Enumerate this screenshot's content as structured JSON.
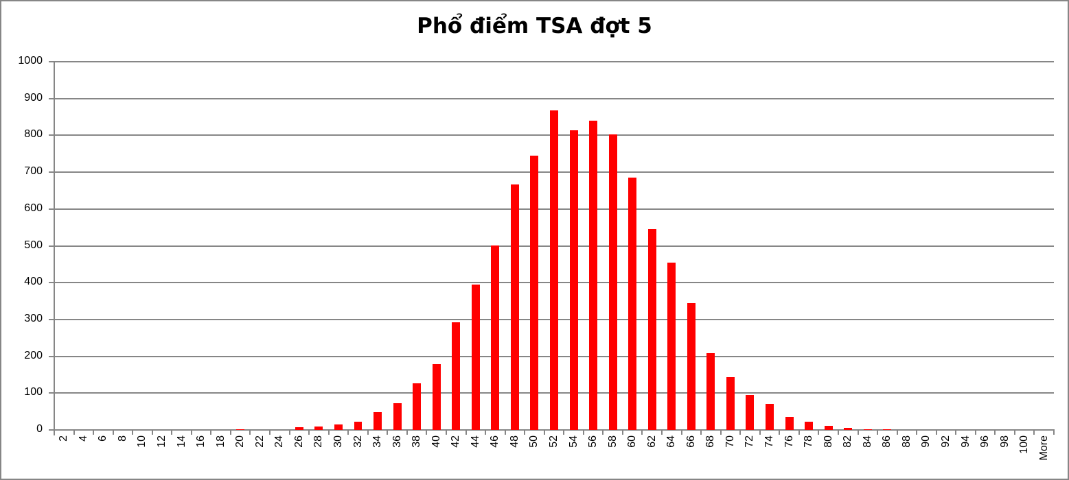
{
  "chart_data": {
    "type": "bar",
    "title": "Phổ điểm TSA đợt 5",
    "xlabel": "",
    "ylabel": "",
    "ylim": [
      0,
      1000
    ],
    "yticks": [
      0,
      100,
      200,
      300,
      400,
      500,
      600,
      700,
      800,
      900,
      1000
    ],
    "grid": true,
    "legend": "none",
    "bar_color": "#ff0000",
    "grid_color": "#868686",
    "categories": [
      "2",
      "4",
      "6",
      "8",
      "10",
      "12",
      "14",
      "16",
      "18",
      "20",
      "22",
      "24",
      "26",
      "28",
      "30",
      "32",
      "34",
      "36",
      "38",
      "40",
      "42",
      "44",
      "46",
      "48",
      "50",
      "52",
      "54",
      "56",
      "58",
      "60",
      "62",
      "64",
      "66",
      "68",
      "70",
      "72",
      "74",
      "76",
      "78",
      "80",
      "82",
      "84",
      "86",
      "88",
      "90",
      "92",
      "94",
      "96",
      "98",
      "100",
      "More"
    ],
    "values": [
      0,
      0,
      0,
      0,
      0,
      0,
      0,
      0,
      0,
      2,
      0,
      0,
      7,
      9,
      14,
      22,
      48,
      72,
      126,
      178,
      293,
      395,
      501,
      666,
      745,
      868,
      814,
      840,
      803,
      685,
      545,
      455,
      344,
      209,
      143,
      95,
      70,
      36,
      23,
      12,
      6,
      2,
      2,
      0,
      0,
      0,
      0,
      0,
      0,
      0,
      0
    ]
  }
}
